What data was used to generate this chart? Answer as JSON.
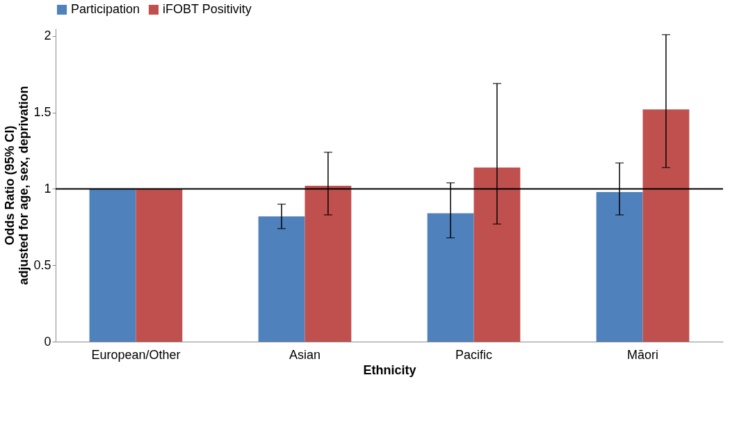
{
  "chart_data": {
    "type": "bar",
    "xlabel": "Ethnicity",
    "ylabel": "Odds Ratio (95% CI)\nadjusted for age, sex, deprivation",
    "categories": [
      "European/Other",
      "Asian",
      "Pacific",
      "Māori"
    ],
    "series": [
      {
        "name": "Participation",
        "color": "#4f81bd",
        "values": [
          1,
          0.82,
          0.84,
          0.98
        ],
        "errors": [
          null,
          [
            0.74,
            0.9
          ],
          [
            0.68,
            1.04
          ],
          [
            0.83,
            1.17
          ]
        ]
      },
      {
        "name": "iFOBT Positivity",
        "color": "#c0504d",
        "values": [
          1,
          1.02,
          1.14,
          1.52
        ],
        "errors": [
          null,
          [
            0.83,
            1.24
          ],
          [
            0.77,
            1.69
          ],
          [
            1.14,
            2.01
          ]
        ]
      }
    ],
    "ylim": [
      0,
      2.05
    ],
    "yticks": [
      0,
      0.5,
      1,
      1.5,
      2
    ],
    "grid": false,
    "legend": "top",
    "ref_lines": [
      {
        "axis": "y",
        "value": 1,
        "label": null,
        "color": "#000000"
      }
    ]
  }
}
